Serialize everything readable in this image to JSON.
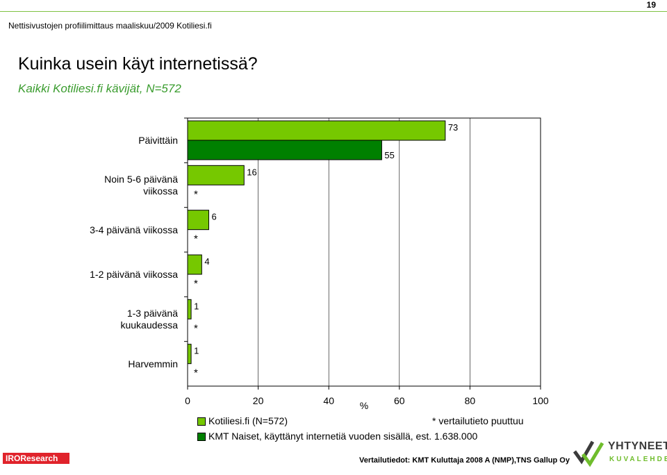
{
  "page": {
    "number": "19",
    "header": "Nettisivustojen profiilimittaus maaliskuu/2009 Kotiliesi.fi",
    "title": "Kuinka usein käyt internetissä?",
    "subtitle": "Kaikki Kotiliesi.fi kävijät, N=572",
    "note": "* vertailutieto puuttuu",
    "source": "Vertailutiedot: KMT Kuluttaja 2008 A (NMP),TNS Gallup Oy",
    "brand_left": "IROResearch",
    "brand_right_1": "YHTYNEET",
    "brand_right_2": "KUVALEHDET"
  },
  "colors": {
    "series1": "#76c800",
    "series2": "#008000",
    "accent_text": "#3a9c2e",
    "iro_red": "#e0232b"
  },
  "chart_data": {
    "type": "bar",
    "orientation": "horizontal",
    "categories": [
      "Päivittäin",
      "Noin 5-6 päivänä viikossa",
      "3-4 päivänä viikossa",
      "1-2 päivänä viikossa",
      "1-3 päivänä kuukaudessa",
      "Harvemmin"
    ],
    "series": [
      {
        "name": "Kotiliesi.fi (N=572)",
        "color": "#76c800",
        "values": [
          73,
          16,
          6,
          4,
          1,
          1
        ]
      },
      {
        "name": "KMT Naiset, käyttänyt internetiä vuoden sisällä, est. 1.638.000",
        "color": "#008000",
        "values": [
          55,
          null,
          null,
          null,
          null,
          null
        ],
        "missing_label": "*"
      }
    ],
    "xlabel": "%",
    "xlim": [
      0,
      100
    ],
    "xticks": [
      0,
      20,
      40,
      60,
      80,
      100
    ],
    "grid": true,
    "legend": "bottom"
  }
}
